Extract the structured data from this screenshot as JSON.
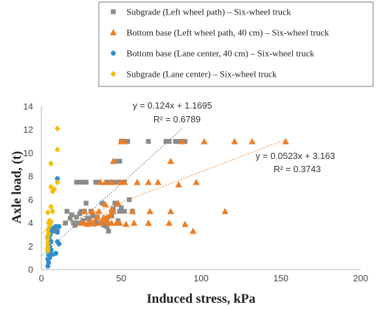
{
  "chart_data": {
    "type": "scatter",
    "xlabel": "Induced stress, kPa",
    "ylabel": "Axle load, (t)",
    "xlim": [
      0,
      200
    ],
    "ylim": [
      0,
      14
    ],
    "xticks": [
      0,
      50,
      100,
      150,
      200
    ],
    "yticks": [
      0,
      2,
      4,
      6,
      8,
      10,
      12,
      14
    ],
    "grid": false,
    "legend_position": "top",
    "series": [
      {
        "name": "Subgrade (Left wheel path) – Six-wheel truck",
        "marker": "square",
        "color": "#8c8c8c",
        "points": [
          [
            8,
            3.3
          ],
          [
            10,
            3.4
          ],
          [
            15,
            4.0
          ],
          [
            16,
            5.0
          ],
          [
            18,
            4.4
          ],
          [
            19,
            4.7
          ],
          [
            20,
            4.0
          ],
          [
            21,
            3.8
          ],
          [
            22,
            4.5
          ],
          [
            23,
            4.0
          ],
          [
            24,
            4.8
          ],
          [
            25,
            5.0
          ],
          [
            26,
            4.2
          ],
          [
            27,
            5.0
          ],
          [
            28,
            5.7
          ],
          [
            29,
            4.4
          ],
          [
            30,
            4.0
          ],
          [
            31,
            5.0
          ],
          [
            32,
            4.6
          ],
          [
            33,
            3.9
          ],
          [
            34,
            4.1
          ],
          [
            35,
            4.5
          ],
          [
            36,
            4.0
          ],
          [
            37,
            4.0
          ],
          [
            38,
            5.7
          ],
          [
            39,
            3.8
          ],
          [
            40,
            4.2
          ],
          [
            41,
            3.7
          ],
          [
            42,
            3.3
          ],
          [
            44,
            4.6
          ],
          [
            45,
            5.2
          ],
          [
            46,
            5.7
          ],
          [
            47,
            5.6
          ],
          [
            48,
            4.2
          ],
          [
            49,
            5.0
          ],
          [
            50,
            5.3
          ],
          [
            52,
            5.0
          ],
          [
            55,
            6.0
          ],
          [
            57,
            5.0
          ],
          [
            22,
            7.5
          ],
          [
            24,
            7.5
          ],
          [
            26,
            7.5
          ],
          [
            28,
            7.5
          ],
          [
            34,
            7.5
          ],
          [
            36,
            7.5
          ],
          [
            42,
            7.5
          ],
          [
            44,
            7.5
          ],
          [
            47,
            7.5
          ],
          [
            49,
            7.5
          ],
          [
            52,
            7.5
          ],
          [
            46,
            9.3
          ],
          [
            49,
            9.3
          ],
          [
            50,
            11.0
          ],
          [
            52,
            11.0
          ],
          [
            54,
            11.0
          ],
          [
            67,
            11.0
          ],
          [
            78,
            11.0
          ],
          [
            80,
            11.0
          ],
          [
            84,
            11.0
          ],
          [
            86,
            11.0
          ],
          [
            88,
            11.0
          ],
          [
            90,
            11.0
          ]
        ]
      },
      {
        "name": "Bottom base (Left wheel path, 40 cm) – Six-wheel truck",
        "marker": "triangle",
        "color": "#ee7d24",
        "points": [
          [
            25,
            4.0
          ],
          [
            27,
            4.0
          ],
          [
            29,
            3.9
          ],
          [
            31,
            4.2
          ],
          [
            33,
            4.0
          ],
          [
            35,
            4.5
          ],
          [
            37,
            4.0
          ],
          [
            38,
            4.2
          ],
          [
            39,
            4.5
          ],
          [
            40,
            4.3
          ],
          [
            41,
            4.5
          ],
          [
            42,
            4.0
          ],
          [
            43,
            4.7
          ],
          [
            44,
            4.0
          ],
          [
            45,
            5.0
          ],
          [
            47,
            4.0
          ],
          [
            48,
            5.7
          ],
          [
            49,
            4.0
          ],
          [
            53,
            3.9
          ],
          [
            57,
            5.0
          ],
          [
            58,
            4.0
          ],
          [
            67,
            4.0
          ],
          [
            68,
            5.0
          ],
          [
            80,
            4.0
          ],
          [
            81,
            5.0
          ],
          [
            90,
            3.9
          ],
          [
            95,
            3.3
          ],
          [
            115,
            5.0
          ],
          [
            27,
            5.0
          ],
          [
            32,
            5.0
          ],
          [
            36,
            5.0
          ],
          [
            40,
            5.6
          ],
          [
            44,
            5.2
          ],
          [
            37,
            7.5
          ],
          [
            40,
            7.5
          ],
          [
            44,
            7.5
          ],
          [
            49,
            7.5
          ],
          [
            52,
            7.5
          ],
          [
            60,
            7.5
          ],
          [
            67,
            7.5
          ],
          [
            73,
            7.5
          ],
          [
            86,
            7.3
          ],
          [
            97,
            7.5
          ],
          [
            45,
            9.3
          ],
          [
            81,
            9.3
          ],
          [
            50,
            11.0
          ],
          [
            52,
            11.0
          ],
          [
            88,
            11.0
          ],
          [
            102,
            11.0
          ],
          [
            121,
            11.0
          ],
          [
            132,
            11.0
          ],
          [
            153,
            11.0
          ]
        ]
      },
      {
        "name": "Bottom base (Lane center, 40 cm) – Six-wheel truck",
        "marker": "circle",
        "color": "#2d8fd0",
        "points": [
          [
            4,
            0.3
          ],
          [
            4.5,
            0.6
          ],
          [
            4,
            0.9
          ],
          [
            5,
            1.0
          ],
          [
            4.5,
            1.3
          ],
          [
            5.5,
            1.4
          ],
          [
            4,
            1.6
          ],
          [
            6,
            1.7
          ],
          [
            5,
            2.0
          ],
          [
            4.5,
            2.2
          ],
          [
            6,
            2.4
          ],
          [
            5,
            2.6
          ],
          [
            4,
            2.8
          ],
          [
            5.5,
            3.0
          ],
          [
            6,
            3.3
          ],
          [
            7,
            3.5
          ],
          [
            8,
            3.6
          ],
          [
            9,
            3.7
          ],
          [
            9,
            1.4
          ],
          [
            7,
            1.3
          ],
          [
            10,
            2.4
          ],
          [
            11,
            2.2
          ],
          [
            10,
            3.2
          ],
          [
            11,
            3.7
          ],
          [
            10,
            7.8
          ]
        ]
      },
      {
        "name": "Subgrade (Lane center) – Six-wheel truck",
        "marker": "diamond",
        "color": "#f5bd05",
        "points": [
          [
            4,
            1.6
          ],
          [
            4,
            1.8
          ],
          [
            4,
            2.0
          ],
          [
            4,
            2.3
          ],
          [
            4,
            2.6
          ],
          [
            4,
            2.9
          ],
          [
            4.5,
            3.1
          ],
          [
            4,
            3.4
          ],
          [
            5,
            3.7
          ],
          [
            4.5,
            4.0
          ],
          [
            5,
            4.2
          ],
          [
            5.5,
            3.9
          ],
          [
            6,
            4.1
          ],
          [
            4,
            4.9
          ],
          [
            6,
            5.4
          ],
          [
            7,
            5.0
          ],
          [
            7,
            6.7
          ],
          [
            6,
            7.1
          ],
          [
            8,
            6.9
          ],
          [
            6,
            9.1
          ],
          [
            10,
            7.5
          ],
          [
            10,
            10.3
          ],
          [
            10,
            12.1
          ]
        ]
      }
    ],
    "trendlines": [
      {
        "equation": "y = 0.124x + 1.1695",
        "r2": "R² = 0.6789",
        "slope": 0.124,
        "intercept": 1.1695,
        "x_range": [
          0,
          88
        ],
        "color": "#6b7a99"
      },
      {
        "equation": "y = 0.0523x + 3.163",
        "r2": "R² = 0.3743",
        "slope": 0.0523,
        "intercept": 3.163,
        "x_range": [
          0,
          153
        ],
        "color": "#ee7d24"
      }
    ]
  }
}
